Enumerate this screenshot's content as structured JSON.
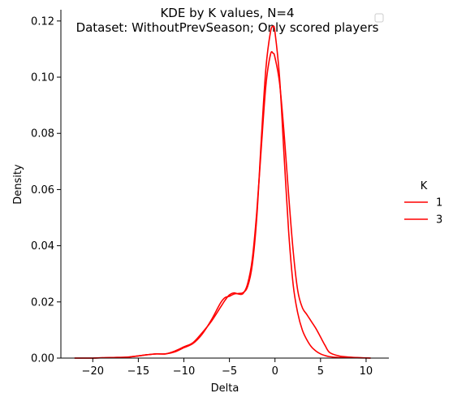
{
  "chart_data": {
    "type": "line",
    "title": "KDE by K values, N=4",
    "subtitle": "Dataset: WithoutPrevSeason; Only scored players",
    "xlabel": "Delta",
    "ylabel": "Density",
    "xlim": [
      -23.5,
      12.5
    ],
    "ylim": [
      0,
      0.124
    ],
    "xticks": [
      -20,
      -15,
      -10,
      -5,
      0,
      5,
      10
    ],
    "xtick_labels": [
      "−20",
      "−15",
      "−10",
      "−5",
      "0",
      "5",
      "10"
    ],
    "yticks": [
      0,
      0.02,
      0.04,
      0.06,
      0.08,
      0.1,
      0.12
    ],
    "ytick_labels": [
      "0.00",
      "0.02",
      "0.04",
      "0.06",
      "0.08",
      "0.10",
      "0.12"
    ],
    "grid": false,
    "legend": {
      "title": "K",
      "placement": "right",
      "entries": [
        "1",
        "3"
      ]
    },
    "series": [
      {
        "name": "1",
        "color": "#ff0000",
        "x": [
          -22,
          -20,
          -18,
          -16,
          -14,
          -13,
          -12,
          -11,
          -10,
          -9,
          -8,
          -7,
          -6,
          -5.5,
          -5,
          -4.5,
          -4,
          -3.5,
          -3,
          -2.5,
          -2,
          -1.5,
          -1,
          -0.5,
          -0.2,
          0,
          0.5,
          1,
          1.5,
          2,
          2.5,
          3,
          3.5,
          4,
          4.5,
          5,
          5.5,
          6,
          7,
          8,
          9,
          10.5
        ],
        "y": [
          0,
          0,
          0.0002,
          0.0004,
          0.0012,
          0.0015,
          0.0015,
          0.0025,
          0.004,
          0.0055,
          0.009,
          0.013,
          0.018,
          0.0205,
          0.0225,
          0.0232,
          0.0228,
          0.023,
          0.0265,
          0.035,
          0.052,
          0.075,
          0.097,
          0.108,
          0.1085,
          0.107,
          0.098,
          0.08,
          0.058,
          0.038,
          0.024,
          0.018,
          0.0155,
          0.013,
          0.0105,
          0.0075,
          0.0045,
          0.002,
          0.0008,
          0.0004,
          0.0002,
          0
        ]
      },
      {
        "name": "3",
        "color": "#ff0000",
        "x": [
          -22,
          -20,
          -18,
          -16,
          -14,
          -13,
          -12,
          -11,
          -10,
          -9,
          -8,
          -7,
          -6,
          -5.5,
          -5,
          -4.5,
          -4,
          -3.5,
          -3,
          -2.5,
          -2,
          -1.5,
          -1,
          -0.5,
          -0.2,
          0,
          0.5,
          1,
          1.5,
          2,
          2.5,
          3,
          3.5,
          4,
          4.5,
          5,
          5.5,
          6,
          7,
          8,
          9,
          10.5
        ],
        "y": [
          0,
          0,
          0.0002,
          0.0004,
          0.0012,
          0.0015,
          0.0015,
          0.0022,
          0.0037,
          0.0052,
          0.0085,
          0.0135,
          0.0195,
          0.0215,
          0.022,
          0.0228,
          0.023,
          0.0233,
          0.0255,
          0.033,
          0.05,
          0.078,
          0.103,
          0.116,
          0.118,
          0.116,
          0.1,
          0.072,
          0.045,
          0.026,
          0.016,
          0.01,
          0.0065,
          0.004,
          0.0025,
          0.0015,
          0.0009,
          0.0005,
          0.0002,
          0.0001,
          0.0001,
          0
        ]
      }
    ]
  }
}
